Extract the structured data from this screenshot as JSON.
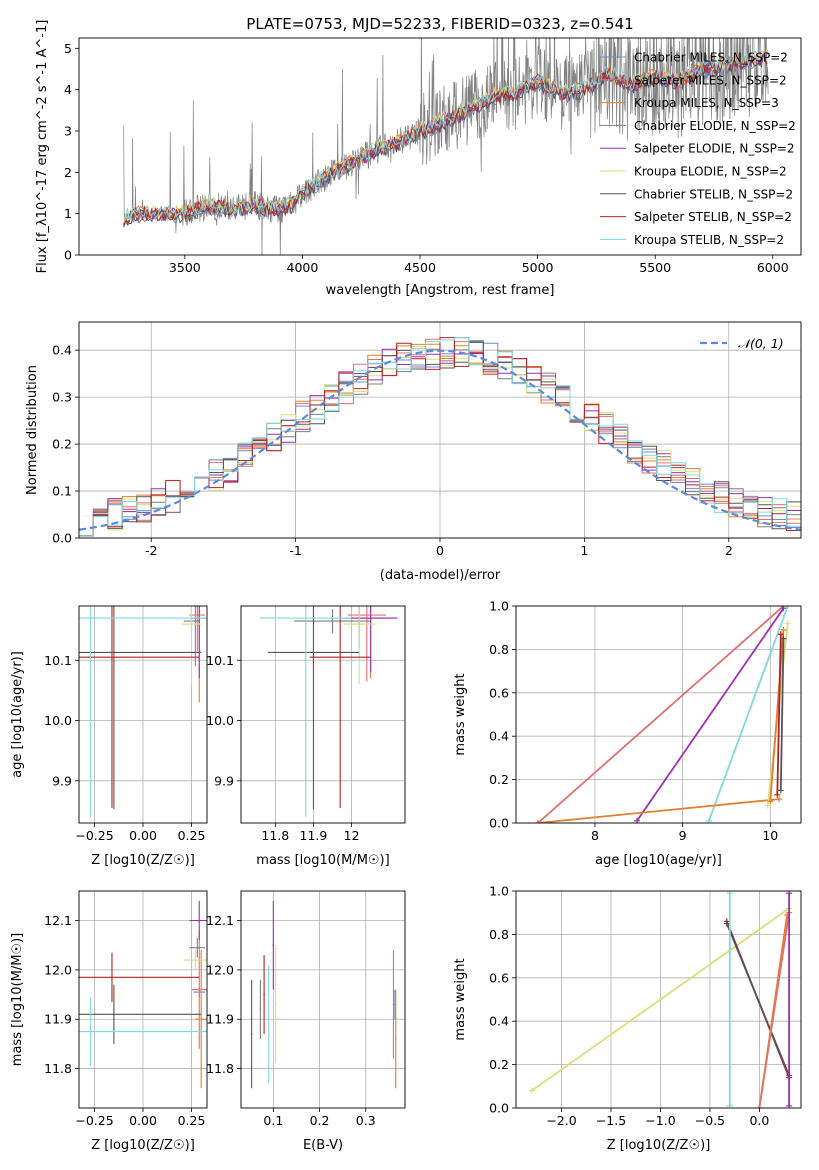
{
  "figure": {
    "title": "PLATE=0753, MJD=52233, FIBERID=0323, z=0.541",
    "colors": {
      "chabrier_miles": "#6a8fd0",
      "salpeter_miles": "#e07070",
      "kroupa_miles": "#e08030",
      "chabrier_elodie": "#7f7f7f",
      "salpeter_elodie": "#9b30b0",
      "kroupa_elodie": "#d8e07a",
      "chabrier_stelib": "#555555",
      "salpeter_stelib": "#b22222",
      "kroupa_stelib": "#80d8e0",
      "normal_curve": "#5b8bd8"
    }
  },
  "chart_data": [
    {
      "id": "spectrum",
      "type": "line",
      "xlabel": "wavelength [Angstrom, rest frame]",
      "ylabel": "Flux [f_λ10^-17 erg cm^-2 s^-1 A^-1]",
      "xlim": [
        3050,
        6120
      ],
      "ylim": [
        0,
        5.25
      ],
      "xticks": [
        3500,
        4000,
        4500,
        5000,
        5500,
        6000
      ],
      "yticks": [
        0,
        1,
        2,
        3,
        4,
        5
      ],
      "legend_position": "top-right",
      "legend": [
        "Chabrier MILES, N_SSP=2",
        "Salpeter MILES, N_SSP=2",
        "Kroupa MILES, N_SSP=3",
        "Chabrier ELODIE, N_SSP=2",
        "Salpeter ELODIE, N_SSP=2",
        "Kroupa ELODIE, N_SSP=2",
        "Chabrier STELIB, N_SSP=2",
        "Salpeter STELIB, N_SSP=2",
        "Kroupa STELIB, N_SSP=2"
      ],
      "data_start": 3240,
      "data_end": 5980,
      "model_profile": {
        "x": [
          3240,
          3300,
          3400,
          3500,
          3600,
          3700,
          3800,
          3900,
          3950,
          4000,
          4100,
          4200,
          4300,
          4400,
          4500,
          4600,
          4700,
          4800,
          4900,
          5000,
          5100,
          5200,
          5300,
          5400,
          5500,
          5600,
          5700,
          5800,
          5900,
          5980
        ],
        "y": [
          0.9,
          1.0,
          1.0,
          1.0,
          1.2,
          1.1,
          1.2,
          1.1,
          1.2,
          1.5,
          1.9,
          2.2,
          2.5,
          2.7,
          3.0,
          3.2,
          3.5,
          3.8,
          3.9,
          4.2,
          3.9,
          4.0,
          4.4,
          4.1,
          4.3,
          4.2,
          4.5,
          4.6,
          4.7,
          4.8
        ]
      }
    },
    {
      "id": "residuals",
      "type": "bar",
      "xlabel": "(data-model)/error",
      "ylabel": "Normed distribution",
      "xlim": [
        -2.5,
        2.5
      ],
      "ylim": [
        0,
        0.46
      ],
      "xticks": [
        -2,
        -1,
        0,
        1,
        2
      ],
      "yticks": [
        0.0,
        0.1,
        0.2,
        0.3,
        0.4
      ],
      "legend": [
        "𝒩(0, 1)"
      ],
      "legend_position": "top-right",
      "grid": true,
      "bin_width": 0.1
    },
    {
      "id": "age_vs_Z",
      "type": "scatter",
      "xlabel": "Z [log10(Z/Z☉)]",
      "ylabel": "age  [log10(age/yr)]",
      "xlim": [
        -0.33,
        0.33
      ],
      "ylim": [
        9.83,
        10.19
      ],
      "xticks": [
        -0.25,
        0.0,
        0.25
      ],
      "xtick_labels": [
        "−0.25",
        "0.00",
        "0.25"
      ],
      "yticks": [
        9.9,
        10.0,
        10.1
      ],
      "grid": true
    },
    {
      "id": "age_vs_mass",
      "type": "scatter",
      "xlabel": "mass [log10(M/M☉)]",
      "xlim": [
        11.71,
        12.14
      ],
      "ylim": [
        9.83,
        10.19
      ],
      "xticks": [
        11.8,
        11.9,
        12.0
      ],
      "yticks": [
        9.9,
        10.0,
        10.1
      ],
      "grid": true
    },
    {
      "id": "weight_vs_age",
      "type": "line",
      "xlabel": "age  [log10(age/yr)]",
      "ylabel": "mass weight",
      "xlim": [
        7.1,
        10.35
      ],
      "ylim": [
        0,
        1
      ],
      "xticks": [
        8,
        9,
        10
      ],
      "yticks": [
        0.0,
        0.2,
        0.4,
        0.6,
        0.8,
        1.0
      ],
      "grid": true,
      "series": [
        {
          "key": "salpeter_miles",
          "points": [
            [
              7.35,
              0.0
            ],
            [
              10.15,
              1.0
            ]
          ]
        },
        {
          "key": "salpeter_elodie",
          "points": [
            [
              8.48,
              0.01
            ],
            [
              10.15,
              0.99
            ]
          ]
        },
        {
          "key": "kroupa_stelib",
          "points": [
            [
              9.3,
              0.01
            ],
            [
              10.2,
              1.0
            ]
          ]
        },
        {
          "key": "kroupa_miles",
          "points": [
            [
              7.35,
              0.0
            ],
            [
              10.1,
              0.11
            ]
          ]
        },
        {
          "key": "kroupa_elodie",
          "points": [
            [
              9.97,
              0.08
            ],
            [
              10.2,
              0.92
            ]
          ]
        },
        {
          "key": "kroupa_miles",
          "points": [
            [
              10.0,
              0.1
            ],
            [
              10.15,
              0.89
            ]
          ]
        },
        {
          "key": "salpeter_stelib",
          "points": [
            [
              10.08,
              0.13
            ],
            [
              10.12,
              0.87
            ]
          ]
        },
        {
          "key": "chabrier_stelib",
          "points": [
            [
              10.12,
              0.15
            ],
            [
              10.15,
              0.85
            ]
          ]
        }
      ]
    },
    {
      "id": "mass_vs_Z",
      "type": "scatter",
      "xlabel": "Z [log10(Z/Z☉)]",
      "ylabel": "mass [log10(M/M☉)]",
      "xlim": [
        -0.33,
        0.33
      ],
      "ylim": [
        11.72,
        12.16
      ],
      "xticks": [
        -0.25,
        0.0,
        0.25
      ],
      "xtick_labels": [
        "−0.25",
        "0.00",
        "0.25"
      ],
      "yticks": [
        11.8,
        11.9,
        12.0,
        12.1
      ],
      "grid": true
    },
    {
      "id": "mass_vs_ebv",
      "type": "scatter",
      "xlabel": "E(B-V)",
      "xlim": [
        0.03,
        0.385
      ],
      "ylim": [
        11.72,
        12.16
      ],
      "xticks": [
        0.1,
        0.2,
        0.3
      ],
      "yticks": [
        11.8,
        11.9,
        12.0,
        12.1
      ],
      "grid": true
    },
    {
      "id": "weight_vs_Z",
      "type": "line",
      "xlabel": "Z [log10(Z/Z☉)]",
      "ylabel": "mass weight",
      "xlim": [
        -2.46,
        0.42
      ],
      "ylim": [
        0,
        1
      ],
      "xticks": [
        -2.0,
        -1.5,
        -1.0,
        -0.5,
        0.0
      ],
      "xtick_labels": [
        "−2.0",
        "−1.5",
        "−1.0",
        "−0.5",
        "0.0"
      ],
      "yticks": [
        0.0,
        0.2,
        0.4,
        0.6,
        0.8,
        1.0
      ],
      "grid": true,
      "series": [
        {
          "key": "kroupa_elodie",
          "points": [
            [
              -2.3,
              0.08
            ],
            [
              0.3,
              0.92
            ]
          ]
        },
        {
          "key": "salpeter_stelib",
          "points": [
            [
              -0.33,
              0.86
            ],
            [
              0.3,
              0.14
            ]
          ]
        },
        {
          "key": "chabrier_stelib",
          "points": [
            [
              -0.33,
              0.85
            ],
            [
              0.3,
              0.15
            ]
          ]
        },
        {
          "key": "kroupa_miles",
          "points": [
            [
              0.0,
              0.0
            ],
            [
              0.28,
              0.89
            ]
          ]
        },
        {
          "key": "salpeter_miles",
          "points": [
            [
              0.0,
              0.0
            ],
            [
              0.3,
              0.9
            ]
          ]
        },
        {
          "key": "salpeter_elodie",
          "points": [
            [
              0.3,
              0.01
            ],
            [
              0.3,
              0.99
            ]
          ]
        },
        {
          "key": "kroupa_stelib",
          "points": [
            [
              -0.3,
              0.01
            ],
            [
              -0.3,
              0.99
            ]
          ]
        }
      ]
    }
  ]
}
